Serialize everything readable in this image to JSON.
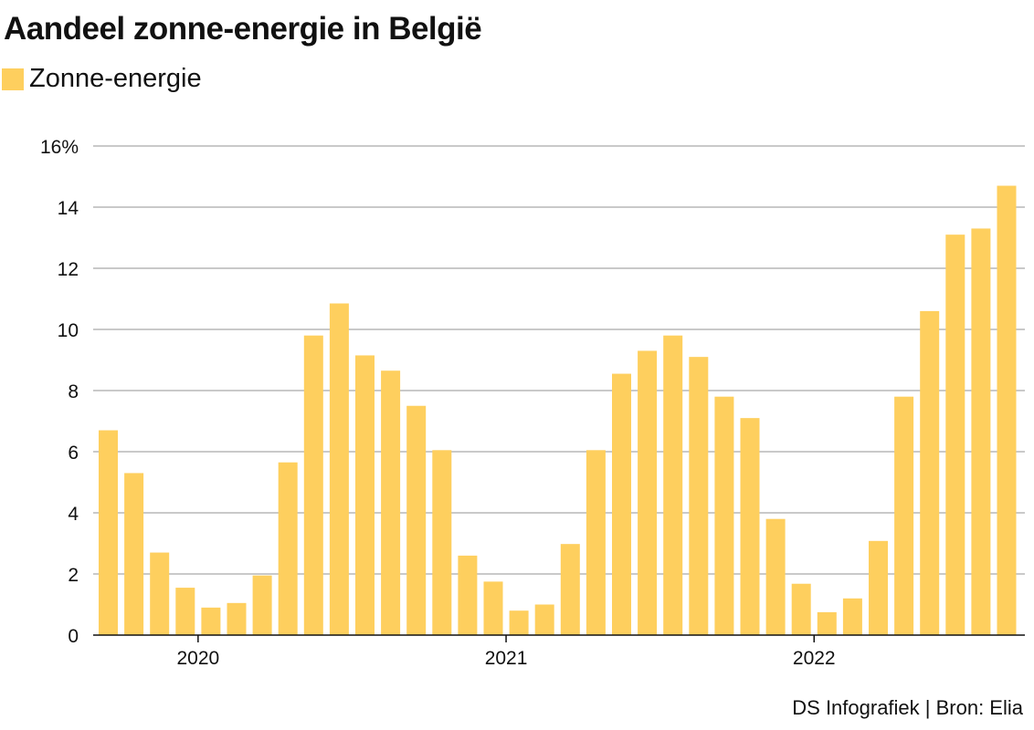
{
  "title": "Aandeel zonne-energie in België",
  "legend": {
    "label": "Zonne-energie",
    "color": "#fecf5e"
  },
  "source": "DS Infografiek | Bron: Elia",
  "chart_data": {
    "type": "bar",
    "title": "Aandeel zonne-energie in België",
    "xlabel": "",
    "ylabel": "",
    "ylim": [
      0,
      16
    ],
    "y_ticks": [
      {
        "value": 0,
        "label": "0"
      },
      {
        "value": 2,
        "label": "2"
      },
      {
        "value": 4,
        "label": "4"
      },
      {
        "value": 6,
        "label": "6"
      },
      {
        "value": 8,
        "label": "8"
      },
      {
        "value": 10,
        "label": "10"
      },
      {
        "value": 12,
        "label": "12"
      },
      {
        "value": 14,
        "label": "14"
      },
      {
        "value": 16,
        "label": "16%"
      }
    ],
    "x_ticks": [
      {
        "category": "2020-01",
        "label": "2020"
      },
      {
        "category": "2021-01",
        "label": "2021"
      },
      {
        "category": "2022-01",
        "label": "2022"
      }
    ],
    "grid": true,
    "legend_position": "top-left",
    "color": "#fecf5e",
    "categories": [
      "2019-09",
      "2019-10",
      "2019-11",
      "2019-12",
      "2020-01",
      "2020-02",
      "2020-03",
      "2020-04",
      "2020-05",
      "2020-06",
      "2020-07",
      "2020-08",
      "2020-09",
      "2020-10",
      "2020-11",
      "2020-12",
      "2021-01",
      "2021-02",
      "2021-03",
      "2021-04",
      "2021-05",
      "2021-06",
      "2021-07",
      "2021-08",
      "2021-09",
      "2021-10",
      "2021-11",
      "2021-12",
      "2022-01",
      "2022-02",
      "2022-03",
      "2022-04",
      "2022-05",
      "2022-06",
      "2022-07",
      "2022-08"
    ],
    "series": [
      {
        "values": [
          6.7,
          5.3,
          2.7,
          1.55,
          0.9,
          1.05,
          1.95,
          5.65,
          9.8,
          10.85,
          9.15,
          8.65,
          7.5,
          6.05,
          2.6,
          1.75,
          0.8,
          1.0,
          2.98,
          6.05,
          8.55,
          9.3,
          9.8,
          9.1,
          7.8,
          7.1,
          3.8,
          1.68,
          0.75,
          1.2,
          3.08,
          7.8,
          10.6,
          13.1,
          13.3,
          14.7
        ]
      }
    ]
  }
}
